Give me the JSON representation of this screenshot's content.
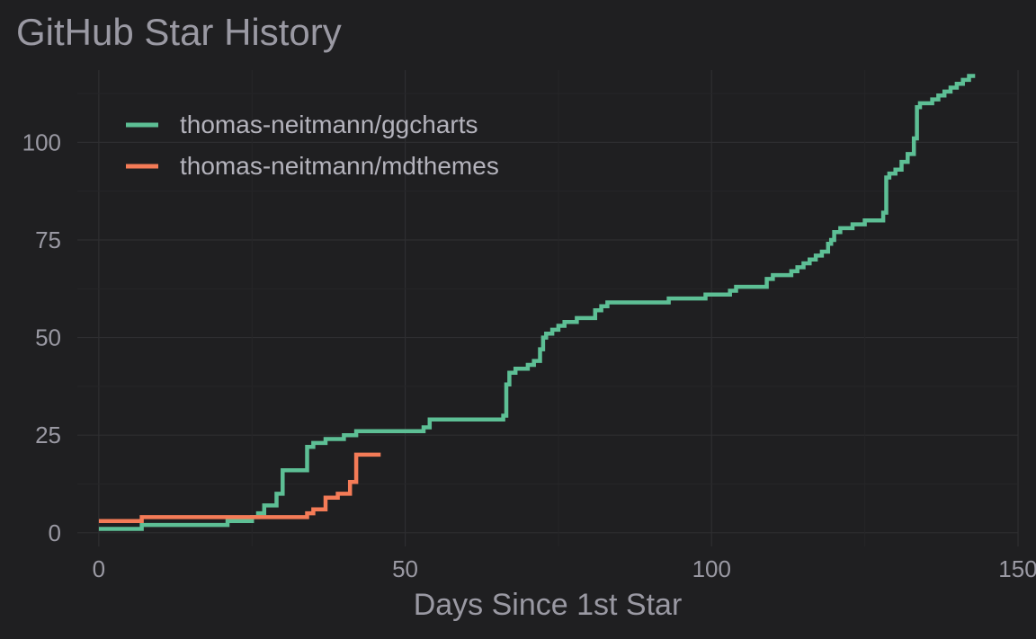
{
  "chart_data": {
    "type": "line",
    "title": "GitHub Star History",
    "xlabel": "Days Since 1st Star",
    "ylabel": "",
    "xlim": [
      -3.5,
      150
    ],
    "ylim": [
      -3.5,
      118.5
    ],
    "x_ticks": [
      0,
      50,
      100,
      150
    ],
    "y_ticks": [
      0,
      25,
      50,
      75,
      100
    ],
    "grid": true,
    "legend_position": "top-left",
    "background": "#1f1f21",
    "series": [
      {
        "name": "thomas-neitmann/ggcharts",
        "color": "#5dbf95",
        "x": [
          0,
          7,
          21,
          25,
          26,
          27,
          29,
          30,
          34,
          35,
          37,
          40,
          42,
          53,
          54,
          66,
          66.5,
          67,
          68,
          70,
          71,
          72,
          72.5,
          73,
          74,
          75,
          76,
          78,
          81,
          82,
          83,
          85,
          93,
          98,
          99,
          103,
          104,
          109,
          110,
          112,
          113,
          114,
          115,
          116,
          117,
          118,
          119,
          119.5,
          120,
          121,
          123,
          125,
          128,
          128.5,
          129,
          130,
          131,
          132,
          133,
          133.5,
          134,
          136,
          137,
          138,
          139,
          140,
          141,
          142,
          143
        ],
        "y": [
          1,
          2,
          3,
          4,
          5,
          7,
          10,
          16,
          22,
          23,
          24,
          25,
          26,
          27,
          29,
          30,
          38,
          41,
          42,
          43,
          44,
          47,
          50,
          51,
          52,
          53,
          54,
          55,
          57,
          58,
          59,
          59,
          60,
          60,
          61,
          62,
          63,
          65,
          66,
          66,
          67,
          68,
          69,
          70,
          71,
          72,
          74,
          75,
          77,
          78,
          79,
          80,
          82,
          91,
          92,
          93,
          95,
          97,
          101,
          109,
          110,
          111,
          112,
          113,
          114,
          115,
          116,
          117,
          117
        ]
      },
      {
        "name": "thomas-neitmann/mdthemes",
        "color": "#f47b57",
        "x": [
          0,
          7,
          34,
          35,
          37,
          38,
          39,
          41,
          42,
          46
        ],
        "y": [
          3,
          4,
          5,
          6,
          9,
          9,
          10,
          13,
          20,
          20
        ]
      }
    ]
  }
}
